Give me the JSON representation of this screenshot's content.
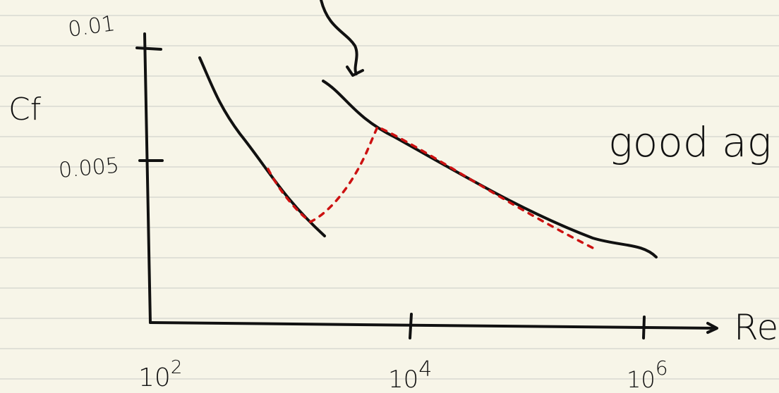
{
  "y_axis": {
    "label": "Cf",
    "ticks": [
      "0.01",
      "0.005"
    ]
  },
  "x_axis": {
    "label": "Re",
    "ticks": [
      {
        "base": "10",
        "exponent": "2"
      },
      {
        "base": "10",
        "exponent": "4"
      },
      {
        "base": "10",
        "exponent": "6"
      }
    ]
  },
  "annotation": "good ag"
}
